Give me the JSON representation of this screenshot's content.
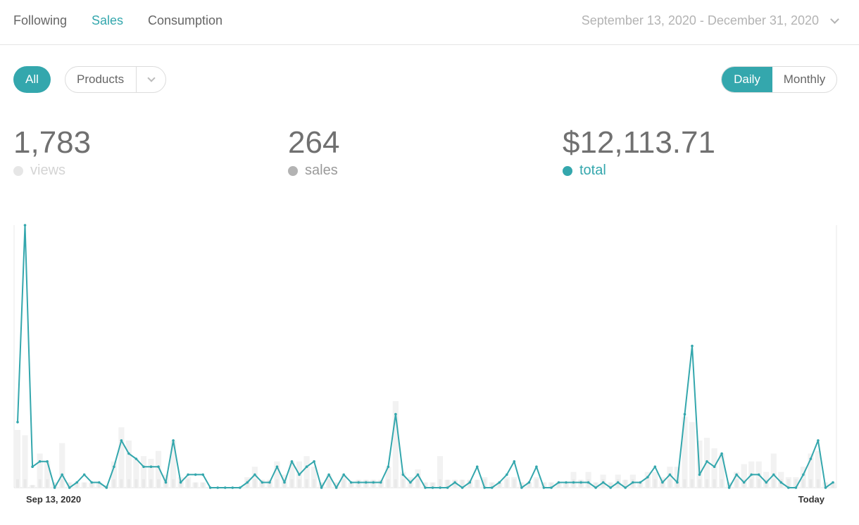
{
  "nav": {
    "tabs": [
      {
        "label": "Following",
        "active": false
      },
      {
        "label": "Sales",
        "active": true
      },
      {
        "label": "Consumption",
        "active": false
      }
    ],
    "date_range": "September 13, 2020 - December 31, 2020"
  },
  "filters": {
    "all_label": "All",
    "products_label": "Products",
    "daily_label": "Daily",
    "monthly_label": "Monthly"
  },
  "stats": {
    "views": {
      "value": "1,783",
      "label": "views",
      "color": "#e6e6e6",
      "text_color": "#d4d4d4"
    },
    "sales": {
      "value": "264",
      "label": "sales",
      "color": "#b3b3b3",
      "text_color": "#9a9a9a"
    },
    "total": {
      "value": "$12,113.71",
      "label": "total",
      "color": "#34a7ad",
      "text_color": "#34a7ad"
    }
  },
  "colors": {
    "accent": "#34a7ad",
    "bar": "#f2f2f2",
    "bar_inner": "#e9e9e9"
  },
  "chart_data": {
    "type": "line",
    "series_name": "total",
    "x_start_label": "Sep 13, 2020",
    "x_end_label": "Today",
    "line": [
      25,
      100,
      8,
      10,
      10,
      0,
      5,
      0,
      2,
      5,
      2,
      2,
      0,
      8,
      18,
      13,
      11,
      8,
      8,
      8,
      2,
      18,
      2,
      5,
      5,
      5,
      0,
      0,
      0,
      0,
      0,
      2,
      5,
      2,
      2,
      8,
      2,
      10,
      5,
      8,
      10,
      0,
      5,
      0,
      5,
      2,
      2,
      2,
      2,
      2,
      8,
      28,
      5,
      2,
      5,
      0,
      0,
      0,
      0,
      2,
      0,
      2,
      8,
      0,
      0,
      2,
      5,
      10,
      0,
      2,
      8,
      0,
      0,
      2,
      2,
      2,
      2,
      2,
      0,
      2,
      0,
      2,
      0,
      2,
      2,
      4,
      8,
      2,
      5,
      2,
      28,
      54,
      5,
      10,
      8,
      13,
      0,
      5,
      2,
      5,
      5,
      2,
      5,
      2,
      0,
      0,
      5,
      11,
      18,
      0,
      2
    ],
    "bars": [
      22,
      20,
      1,
      13,
      10,
      2,
      17,
      2,
      2,
      2,
      2,
      2,
      1,
      10,
      23,
      18,
      11,
      12,
      11,
      14,
      5,
      18,
      4,
      4,
      2,
      2,
      0,
      0,
      0,
      0,
      0,
      4,
      8,
      3,
      3,
      10,
      5,
      10,
      10,
      12,
      8,
      2,
      5,
      2,
      5,
      2,
      3,
      3,
      3,
      3,
      8,
      33,
      6,
      4,
      7,
      2,
      2,
      12,
      3,
      3,
      3,
      3,
      3,
      4,
      2,
      2,
      4,
      4,
      2,
      2,
      4,
      2,
      2,
      2,
      2,
      6,
      3,
      6,
      2,
      5,
      2,
      5,
      3,
      5,
      2,
      6,
      6,
      4,
      8,
      8,
      27,
      25,
      18,
      19,
      15,
      13,
      2,
      6,
      9,
      10,
      10,
      6,
      13,
      6,
      4,
      4,
      8,
      13,
      14,
      2,
      2
    ]
  }
}
